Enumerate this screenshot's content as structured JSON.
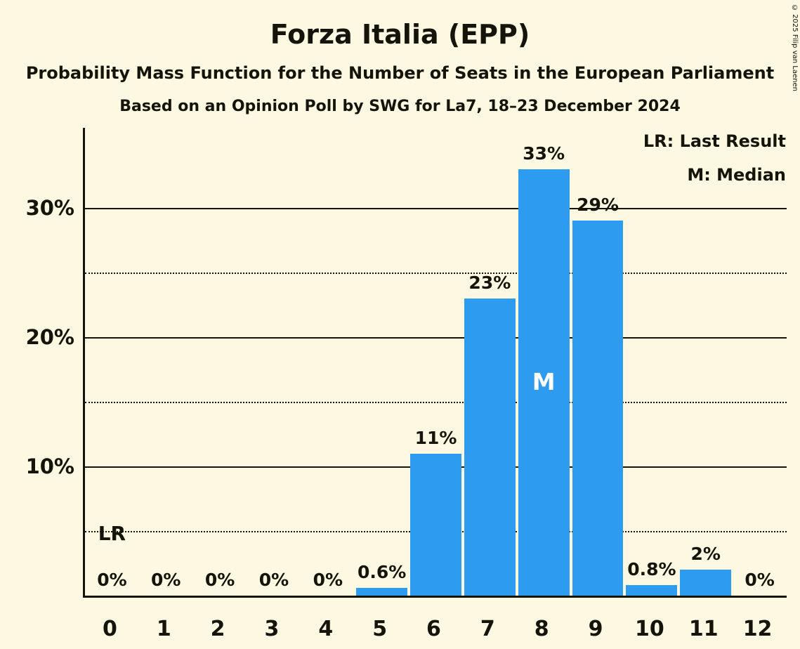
{
  "title": "Forza Italia (EPP)",
  "subtitle1": "Probability Mass Function for the Number of Seats in the European Parliament",
  "subtitle2": "Based on an Opinion Poll by SWG for La7, 18–23 December 2024",
  "legend": {
    "lr": "LR: Last Result",
    "m": "M: Median"
  },
  "copyright": "© 2025 Filip van Laenen",
  "colors": {
    "background": "#FCF8E2",
    "bar": "#2D9BF0",
    "text": "#14140A",
    "median_text": "#FFFFFF"
  },
  "chart_data": {
    "type": "bar",
    "title": "Forza Italia (EPP)",
    "xlabel": "",
    "ylabel": "",
    "categories": [
      0,
      1,
      2,
      3,
      4,
      5,
      6,
      7,
      8,
      9,
      10,
      11,
      12
    ],
    "values": [
      0,
      0,
      0,
      0,
      0,
      0.6,
      11,
      23,
      33,
      29,
      0.8,
      2,
      0
    ],
    "bar_labels": [
      "0%",
      "0%",
      "0%",
      "0%",
      "0%",
      "0.6%",
      "11%",
      "23%",
      "33%",
      "29%",
      "0.8%",
      "2%",
      "0%"
    ],
    "y_ticks": [
      10,
      20,
      30
    ],
    "y_tick_labels": [
      "10%",
      "20%",
      "30%"
    ],
    "solid_lines": [
      10,
      20,
      30
    ],
    "dotted_lines": [
      5,
      15,
      25
    ],
    "ylim": [
      0,
      36.2
    ],
    "grid": "horizontal",
    "legend_position": "top-right",
    "median_seat": 8,
    "median_marker": "M",
    "last_result_seat": 0,
    "last_result_marker": "LR"
  }
}
